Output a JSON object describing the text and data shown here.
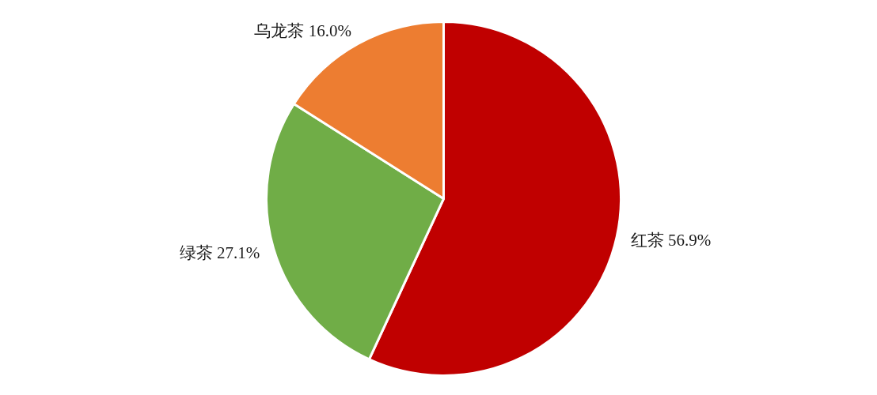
{
  "chart_data": {
    "type": "pie",
    "categories": [
      "红茶",
      "绿茶",
      "乌龙茶"
    ],
    "values": [
      56.9,
      27.1,
      16.0
    ],
    "colors": [
      "#c00000",
      "#70ad47",
      "#ed7d31"
    ],
    "value_labels": [
      "56.9%",
      "27.1%",
      "16.0%"
    ]
  }
}
